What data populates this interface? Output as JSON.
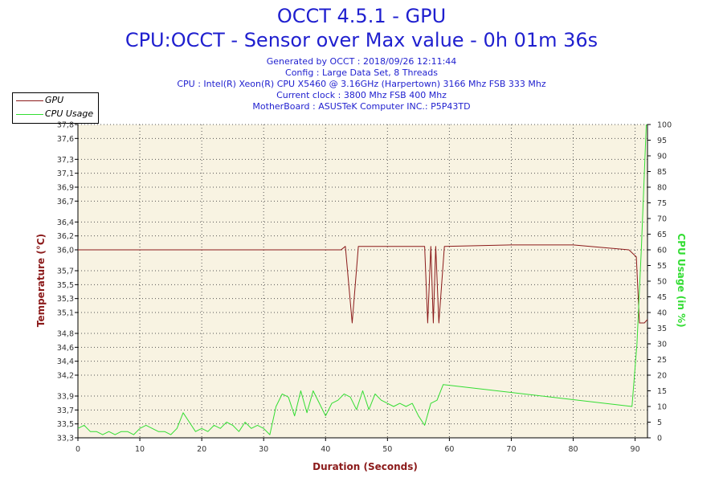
{
  "header": {
    "title": "OCCT 4.5.1 - GPU",
    "subtitle": "CPU:OCCT - Sensor over Max value - 0h 01m 36s",
    "info_lines": [
      "Generated by OCCT : 2018/09/26 12:11:44",
      "Config : Large Data Set, 8 Threads",
      "CPU : Intel(R) Xeon(R) CPU X5460 @ 3.16GHz (Harpertown) 3166 Mhz FSB 333 Mhz",
      "Current clock : 3800 Mhz FSB 400 Mhz",
      "MotherBoard : ASUSTeK Computer INC.: P5P43TD"
    ]
  },
  "legend": {
    "items": [
      {
        "label": "GPU",
        "color": "#8b1a1a"
      },
      {
        "label": "CPU Usage",
        "color": "#33dd33"
      }
    ]
  },
  "chart_data": {
    "type": "line",
    "xlabel": "Duration (Seconds)",
    "ylabel_left": "Temperature (°C)",
    "ylabel_right": "CPU Usage (in %)",
    "xlim": [
      0,
      92
    ],
    "ylim_left": [
      33.3,
      37.8
    ],
    "ylim_right": [
      0,
      100
    ],
    "x_ticks": [
      "0",
      "10",
      "20",
      "30",
      "40",
      "50",
      "60",
      "70",
      "80",
      "90"
    ],
    "x_tick_values": [
      0,
      10,
      20,
      30,
      40,
      50,
      60,
      70,
      80,
      90
    ],
    "y_left_ticks": [
      "33,3",
      "33,5",
      "33,7",
      "33,9",
      "34,2",
      "34,4",
      "34,6",
      "34,8",
      "35,1",
      "35,3",
      "35,5",
      "35,7",
      "36,0",
      "36,2",
      "36,4",
      "36,7",
      "36,9",
      "37,1",
      "37,3",
      "37,6",
      "37,8"
    ],
    "y_left_tick_values": [
      33.3,
      33.5,
      33.7,
      33.9,
      34.2,
      34.4,
      34.6,
      34.8,
      35.1,
      35.3,
      35.5,
      35.7,
      36.0,
      36.2,
      36.4,
      36.7,
      36.9,
      37.1,
      37.3,
      37.6,
      37.8
    ],
    "y_right_ticks": [
      "0",
      "5",
      "10",
      "15",
      "20",
      "25",
      "30",
      "35",
      "40",
      "45",
      "50",
      "55",
      "60",
      "65",
      "70",
      "75",
      "80",
      "85",
      "90",
      "95",
      "100"
    ],
    "y_right_tick_values": [
      0,
      5,
      10,
      15,
      20,
      25,
      30,
      35,
      40,
      45,
      50,
      55,
      60,
      65,
      70,
      75,
      80,
      85,
      90,
      95,
      100
    ],
    "grid": true,
    "background_color": "#f8f3e2",
    "series": [
      {
        "name": "GPU",
        "color": "#8b1a1a",
        "axis": "left",
        "x": [
          0,
          42.5,
          43.2,
          44.3,
          45.3,
          56.0,
          56.5,
          57.0,
          57.4,
          57.8,
          58.3,
          59.2,
          70,
          80,
          89,
          90.2,
          90.7,
          91.5,
          92
        ],
        "y": [
          36.0,
          36.0,
          36.05,
          34.95,
          36.05,
          36.05,
          34.95,
          36.05,
          34.95,
          36.05,
          34.95,
          36.05,
          36.07,
          36.07,
          36.0,
          35.9,
          34.95,
          34.95,
          35.0
        ]
      },
      {
        "name": "CPU Usage",
        "color": "#33dd33",
        "axis": "right",
        "x": [
          0,
          1,
          2,
          3,
          4,
          5,
          6,
          7,
          8,
          9,
          10,
          11,
          12,
          13,
          14,
          15,
          16,
          17,
          18,
          19,
          20,
          21,
          22,
          23,
          24,
          25,
          26,
          27,
          28,
          29,
          30,
          31,
          32,
          33,
          34,
          35,
          36,
          37,
          38,
          39,
          40,
          41,
          42,
          43,
          44,
          45,
          46,
          47,
          48,
          49,
          50,
          51,
          52,
          53,
          54,
          55,
          56,
          57,
          58,
          59,
          89.5,
          90.3,
          91.0,
          91.8
        ],
        "y": [
          3,
          4,
          2,
          2,
          1,
          2,
          1,
          2,
          2,
          1,
          3,
          4,
          3,
          2,
          2,
          1,
          3,
          8,
          5,
          2,
          3,
          2,
          4,
          3,
          5,
          4,
          2,
          5,
          3,
          4,
          3,
          1,
          10,
          14,
          13,
          7,
          15,
          8,
          15,
          11,
          7,
          11,
          12,
          14,
          13,
          9,
          15,
          9,
          14,
          12,
          11,
          10,
          11,
          10,
          11,
          7,
          4,
          11,
          12,
          17,
          10,
          30,
          60,
          100
        ]
      }
    ]
  }
}
